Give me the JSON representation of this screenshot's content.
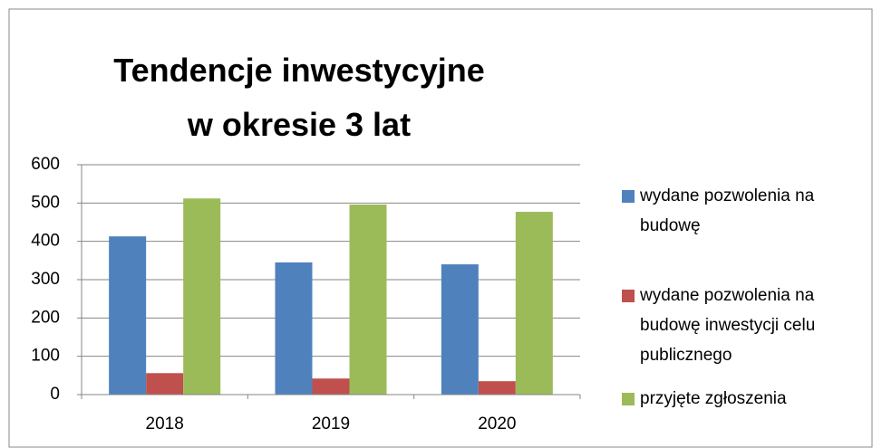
{
  "chart_data": {
    "type": "bar",
    "title": "Tendencje inwestycyjne w okresie 3 lat",
    "categories": [
      "2018",
      "2019",
      "2020"
    ],
    "series": [
      {
        "name": "wydane pozwolenia na budowę",
        "color": "#4f81bd",
        "values": [
          413,
          345,
          340
        ]
      },
      {
        "name": "wydane pozwolenia na budowę inwestycji celu publicznego",
        "color": "#c0504d",
        "values": [
          56,
          42,
          35
        ]
      },
      {
        "name": "przyjęte zgłoszenia",
        "color": "#9bbb59",
        "values": [
          512,
          496,
          477
        ]
      }
    ],
    "ylim": [
      0,
      600
    ],
    "yticks": [
      0,
      100,
      200,
      300,
      400,
      500,
      600
    ],
    "grid": true,
    "legend": "right"
  }
}
